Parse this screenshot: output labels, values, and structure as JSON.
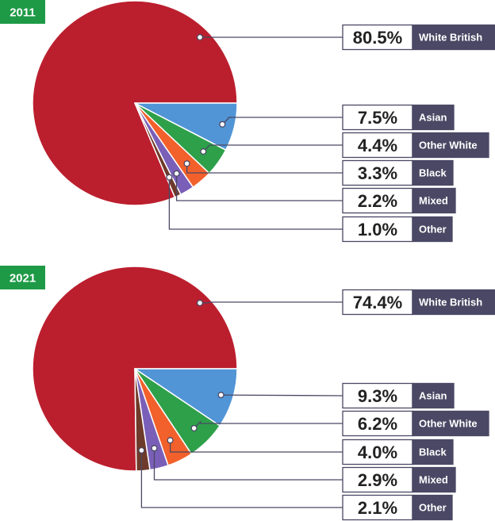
{
  "colors": {
    "year_badge": "#1e9a47",
    "label_dark": "#4a4864",
    "leader": "#4a4864",
    "categories": {
      "White British": "#bb1f2e",
      "Asian": "#5195d6",
      "Other White": "#2ea04a",
      "Black": "#f2602b",
      "Mixed": "#7a5fb8",
      "Other": "#6e3a2b"
    }
  },
  "chart_data": [
    {
      "type": "pie",
      "title": "2011",
      "categories": [
        "White British",
        "Asian",
        "Other White",
        "Black",
        "Mixed",
        "Other"
      ],
      "values": [
        80.5,
        7.5,
        4.4,
        3.3,
        2.2,
        1.0
      ],
      "labels": [
        "80.5%",
        "7.5%",
        "4.4%",
        "3.3%",
        "2.2%",
        "1.0%"
      ]
    },
    {
      "type": "pie",
      "title": "2021",
      "categories": [
        "White British",
        "Asian",
        "Other White",
        "Black",
        "Mixed",
        "Other"
      ],
      "values": [
        74.4,
        9.3,
        6.2,
        4.0,
        2.9,
        2.1
      ],
      "labels": [
        "74.4%",
        "9.3%",
        "6.2%",
        "4.0%",
        "2.9%",
        "2.1%"
      ]
    }
  ]
}
